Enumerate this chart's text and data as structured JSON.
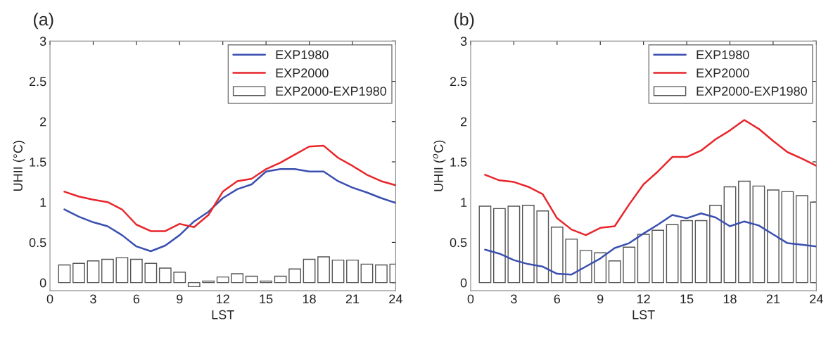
{
  "chart_data": [
    {
      "type": "bar",
      "title": "(a)",
      "xlabel": "LST",
      "ylabel": "UHII (°C)",
      "x": [
        1,
        2,
        3,
        4,
        5,
        6,
        7,
        8,
        9,
        10,
        11,
        12,
        13,
        14,
        15,
        16,
        17,
        18,
        19,
        20,
        21,
        22,
        23,
        24
      ],
      "xlim": [
        0,
        24
      ],
      "xticks": [
        0,
        3,
        6,
        9,
        12,
        15,
        18,
        21,
        24
      ],
      "ylim": [
        -0.1,
        3
      ],
      "yticks": [
        0,
        0.5,
        1,
        1.5,
        2,
        2.5,
        3
      ],
      "grid": false,
      "legend": "top right",
      "series": [
        {
          "name": "EXP1980",
          "type": "line",
          "color": "#3a4fb0",
          "values": [
            0.91,
            0.82,
            0.75,
            0.7,
            0.59,
            0.45,
            0.39,
            0.46,
            0.59,
            0.76,
            0.88,
            1.05,
            1.16,
            1.22,
            1.38,
            1.41,
            1.41,
            1.38,
            1.38,
            1.26,
            1.18,
            1.12,
            1.05,
            0.99
          ]
        },
        {
          "name": "EXP2000",
          "type": "line",
          "color": "#e8262b",
          "values": [
            1.13,
            1.07,
            1.03,
            1.0,
            0.91,
            0.72,
            0.64,
            0.64,
            0.73,
            0.69,
            0.84,
            1.13,
            1.26,
            1.29,
            1.41,
            1.49,
            1.59,
            1.69,
            1.7,
            1.55,
            1.45,
            1.34,
            1.26,
            1.21
          ]
        },
        {
          "name": "EXP2000-EXP1980",
          "color": "#ffffff",
          "values": [
            0.22,
            0.24,
            0.27,
            0.29,
            0.31,
            0.29,
            0.24,
            0.18,
            0.13,
            -0.05,
            0.02,
            0.07,
            0.11,
            0.08,
            0.02,
            0.08,
            0.17,
            0.29,
            0.32,
            0.28,
            0.28,
            0.23,
            0.22,
            0.23
          ]
        }
      ]
    },
    {
      "type": "bar",
      "title": "(b)",
      "xlabel": "LST",
      "ylabel": "UHII ($^{o}$C)",
      "x": [
        1,
        2,
        3,
        4,
        5,
        6,
        7,
        8,
        9,
        10,
        11,
        12,
        13,
        14,
        15,
        16,
        17,
        18,
        19,
        20,
        21,
        22,
        23,
        24
      ],
      "xlim": [
        0,
        24
      ],
      "xticks": [
        0,
        3,
        6,
        9,
        12,
        15,
        18,
        21,
        24
      ],
      "ylim": [
        -0.1,
        3
      ],
      "yticks": [
        0,
        0.5,
        1,
        1.5,
        2,
        2.5,
        3
      ],
      "grid": false,
      "legend": "top right",
      "series": [
        {
          "name": "EXP1980",
          "type": "line",
          "color": "#3a4fb0",
          "values": [
            0.41,
            0.36,
            0.28,
            0.23,
            0.2,
            0.11,
            0.1,
            0.2,
            0.3,
            0.43,
            0.49,
            0.61,
            0.72,
            0.84,
            0.8,
            0.86,
            0.81,
            0.7,
            0.76,
            0.71,
            0.6,
            0.49,
            0.47,
            0.45
          ]
        },
        {
          "name": "EXP2000",
          "type": "line",
          "color": "#e8262b",
          "values": [
            1.34,
            1.27,
            1.25,
            1.19,
            1.1,
            0.8,
            0.66,
            0.59,
            0.68,
            0.7,
            0.97,
            1.22,
            1.38,
            1.56,
            1.56,
            1.64,
            1.78,
            1.89,
            2.02,
            1.91,
            1.76,
            1.62,
            1.54,
            1.45
          ]
        },
        {
          "name": "EXP2000-EXP1980",
          "color": "#ffffff",
          "values": [
            0.95,
            0.92,
            0.95,
            0.96,
            0.89,
            0.69,
            0.54,
            0.4,
            0.37,
            0.27,
            0.44,
            0.6,
            0.65,
            0.72,
            0.77,
            0.77,
            0.96,
            1.19,
            1.26,
            1.2,
            1.15,
            1.13,
            1.08,
            1.0
          ]
        }
      ]
    }
  ]
}
